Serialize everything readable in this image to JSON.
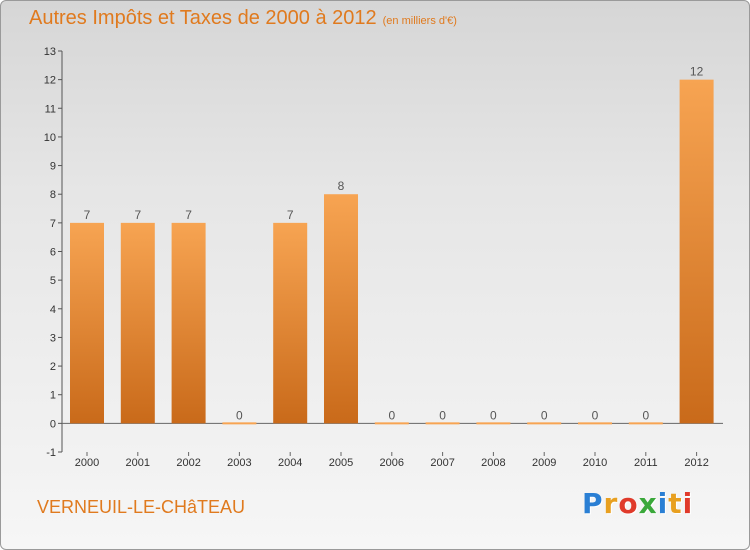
{
  "header": {
    "title": "Autres Impôts et Taxes de 2000 à 2012",
    "unit": "(en milliers d'€)"
  },
  "footer": {
    "commune": "VERNEUIL-LE-CHâTEAU",
    "brand": "Proxiti",
    "brand_colors": [
      "#2a7fd4",
      "#e8a020",
      "#e03a2a",
      "#3aa83a",
      "#2a7fd4",
      "#e8a020",
      "#e03a2a"
    ]
  },
  "colors": {
    "bar_light": "#f7a452",
    "bar_dark": "#c96a1a",
    "accent": "#e07a1e"
  },
  "chart_data": {
    "type": "bar",
    "categories": [
      "2000",
      "2001",
      "2002",
      "2003",
      "2004",
      "2005",
      "2006",
      "2007",
      "2008",
      "2009",
      "2010",
      "2011",
      "2012"
    ],
    "values": [
      7,
      7,
      7,
      0,
      7,
      8,
      0,
      0,
      0,
      0,
      0,
      0,
      12
    ],
    "data_labels": [
      "7",
      "7",
      "7",
      "0",
      "7",
      "8",
      "0",
      "0",
      "0",
      "0",
      "0",
      "0",
      "12"
    ],
    "yticks": [
      -1,
      0,
      1,
      2,
      3,
      4,
      5,
      6,
      7,
      8,
      9,
      10,
      11,
      12,
      13
    ],
    "ylim": [
      -1,
      13
    ],
    "grid": false,
    "legend": "none"
  }
}
